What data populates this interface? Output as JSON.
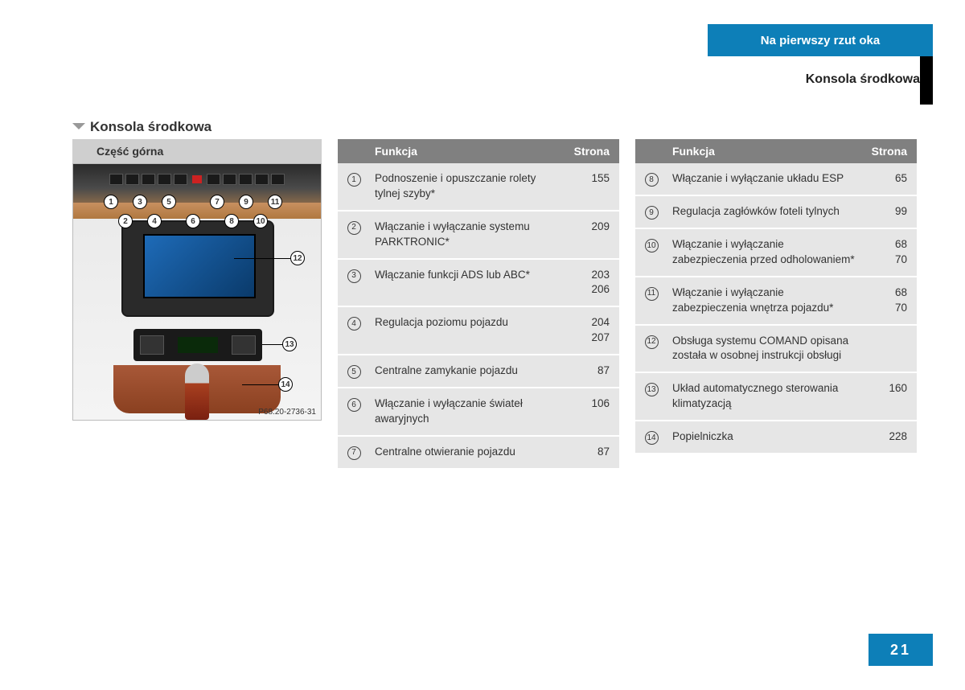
{
  "header": {
    "chapter": "Na pierwszy rzut oka",
    "subtitle": "Konsola środkowa"
  },
  "section": {
    "title": "Konsola środkowa",
    "image_caption": "Część górna",
    "image_ref": "P68.20-2736-31"
  },
  "table_headers": {
    "function": "Funkcja",
    "page": "Strona"
  },
  "callouts": {
    "c1": "1",
    "c2": "2",
    "c3": "3",
    "c4": "4",
    "c5": "5",
    "c6": "6",
    "c7": "7",
    "c8": "8",
    "c9": "9",
    "c10": "10",
    "c11": "11",
    "c12": "12",
    "c13": "13",
    "c14": "14"
  },
  "rows1": [
    {
      "n": "1",
      "func": "Podnoszenie i opuszczanie rolety tylnej szyby*",
      "page": "155"
    },
    {
      "n": "2",
      "func": "Włączanie i wyłączanie systemu PARKTRONIC*",
      "page": "209"
    },
    {
      "n": "3",
      "func": "Włączanie funkcji ADS lub ABC*",
      "page": "203\n206"
    },
    {
      "n": "4",
      "func": "Regulacja poziomu pojazdu",
      "page": "204\n207"
    },
    {
      "n": "5",
      "func": "Centralne zamykanie pojazdu",
      "page": "87"
    },
    {
      "n": "6",
      "func": "Włączanie i wyłączanie świateł awaryjnych",
      "page": "106"
    },
    {
      "n": "7",
      "func": "Centralne otwieranie pojazdu",
      "page": "87"
    }
  ],
  "rows2": [
    {
      "n": "8",
      "func": "Włączanie i wyłączanie układu ESP",
      "page": "65"
    },
    {
      "n": "9",
      "func": "Regulacja zagłówków foteli tylnych",
      "page": "99"
    },
    {
      "n": "10",
      "func": "Włączanie i wyłączanie zabezpieczenia przed odholowaniem*",
      "page": "68\n70"
    },
    {
      "n": "11",
      "func": "Włączanie i wyłączanie zabezpieczenia wnętrza pojazdu*",
      "page": "68\n70"
    },
    {
      "n": "12",
      "func": "Obsługa systemu COMAND opisana została w osobnej instrukcji obsługi",
      "page": ""
    },
    {
      "n": "13",
      "func": "Układ automatycznego sterowania klimatyzacją",
      "page": "160"
    },
    {
      "n": "14",
      "func": "Popielniczka",
      "page": "228"
    }
  ],
  "page_number": "21"
}
